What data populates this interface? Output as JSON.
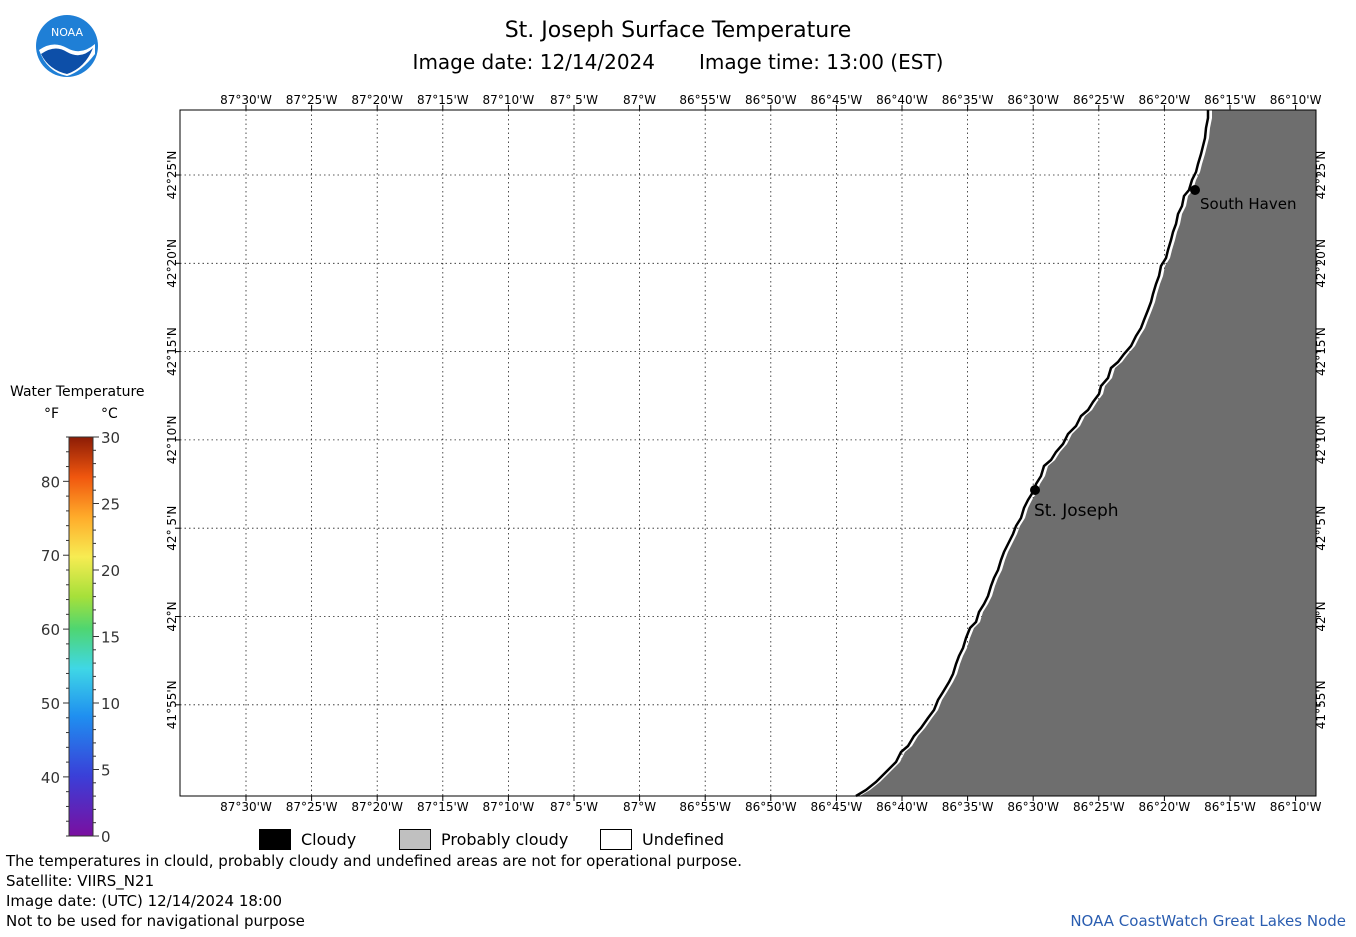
{
  "header": {
    "title": "St. Joseph Surface Temperature",
    "image_date": "Image date: 12/14/2024",
    "image_time": "Image time: 13:00 (EST)",
    "logo_text": "NOAA"
  },
  "map": {
    "lon_labels": [
      "87°30'W",
      "87°25'W",
      "87°20'W",
      "87°15'W",
      "87°10'W",
      "87° 5'W",
      "87°W",
      "86°55'W",
      "86°50'W",
      "86°45'W",
      "86°40'W",
      "86°35'W",
      "86°30'W",
      "86°25'W",
      "86°20'W",
      "86°15'W",
      "86°10'W"
    ],
    "lat_labels": [
      "42°25'N",
      "42°20'N",
      "42°15'N",
      "42°10'N",
      "42° 5'N",
      "42°N",
      "41°55'N"
    ],
    "land_color": "#6e6e6e",
    "places": [
      {
        "name": "South Haven"
      },
      {
        "name": "St. Joseph"
      }
    ]
  },
  "colorbar": {
    "title": "Water Temperature",
    "unit_f": "°F",
    "unit_c": "°C",
    "f_ticks": [
      "80",
      "70",
      "60",
      "50",
      "40"
    ],
    "c_ticks": [
      "30",
      "25",
      "20",
      "15",
      "10",
      "5",
      "0"
    ]
  },
  "cloud_legend": [
    {
      "label": "Cloudy",
      "color": "#000000"
    },
    {
      "label": "Probably cloudy",
      "color": "#c0c0c0"
    },
    {
      "label": "Undefined",
      "color": "#ffffff"
    }
  ],
  "footer": {
    "note": "The temperatures in clould, probably cloudy and undefined areas are not for operational purpose.",
    "satellite": "Satellite: VIIRS_N21",
    "utc_date": "Image date: (UTC) 12/14/2024  18:00",
    "nav_warning": "Not to be used for navigational purpose",
    "credit": "NOAA CoastWatch Great Lakes Node"
  }
}
